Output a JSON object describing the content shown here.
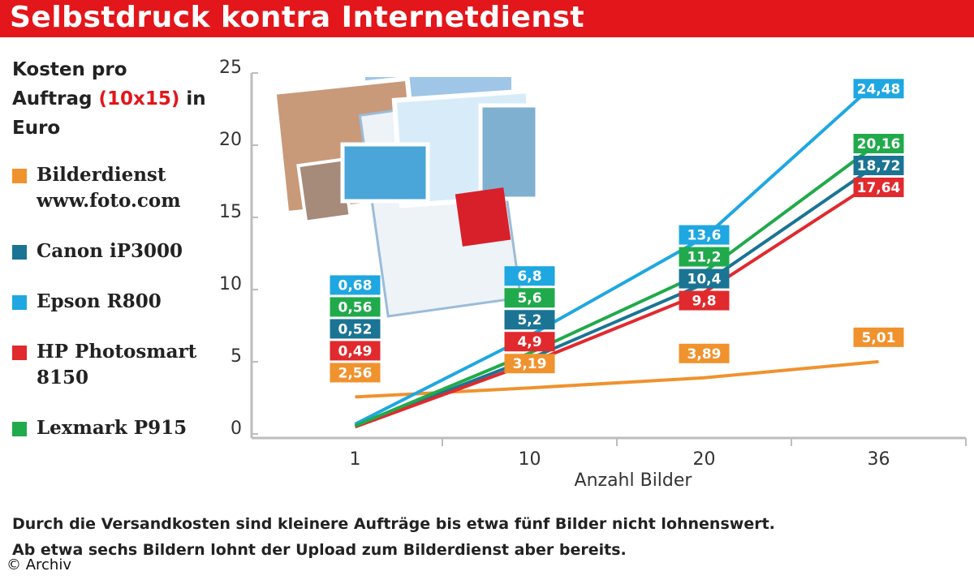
{
  "chart_data": {
    "type": "line",
    "title": "Selbstdruck kontra Internetdienst",
    "y_label": "Kosten pro Auftrag",
    "y_label_unit": "(10x15)",
    "y_label_suffix": "in Euro",
    "x_label": "Anzahl Bilder",
    "categories": [
      "1",
      "10",
      "20",
      "36"
    ],
    "ylim": [
      0,
      25
    ],
    "yticks": [
      0,
      5,
      10,
      15,
      20,
      25
    ],
    "series": [
      {
        "name": "Bilderdienst www.foto.com",
        "color": "#f0922e",
        "values": [
          2.56,
          3.19,
          3.89,
          5.01
        ],
        "value_labels": [
          "2,56",
          "3,19",
          "3,89",
          "5,01"
        ]
      },
      {
        "name": "Canon iP3000",
        "color": "#1b7494",
        "values": [
          0.52,
          5.2,
          10.4,
          18.72
        ],
        "value_labels": [
          "0,52",
          "5,2",
          "10,4",
          "18,72"
        ]
      },
      {
        "name": "Epson R800",
        "color": "#1fa7e1",
        "values": [
          0.68,
          6.8,
          13.6,
          24.48
        ],
        "value_labels": [
          "0,68",
          "6,8",
          "13,6",
          "24,48"
        ]
      },
      {
        "name": "HP Photosmart 8150",
        "color": "#e02a2e",
        "values": [
          0.49,
          4.9,
          9.8,
          17.64
        ],
        "value_labels": [
          "0,49",
          "4,9",
          "9,8",
          "17,64"
        ]
      },
      {
        "name": "Lexmark P915",
        "color": "#21aa4b",
        "values": [
          0.56,
          5.6,
          11.2,
          20.16
        ],
        "value_labels": [
          "0,56",
          "5,6",
          "11,2",
          "20,16"
        ]
      }
    ],
    "note": [
      "Durch die Versandkosten sind kleinere Aufträge bis etwa fünf Bilder nicht lohnenswert.",
      "Ab etwa sechs Bildern lohnt der Upload zum Bilderdienst aber bereits."
    ],
    "credit": "© Archiv"
  }
}
